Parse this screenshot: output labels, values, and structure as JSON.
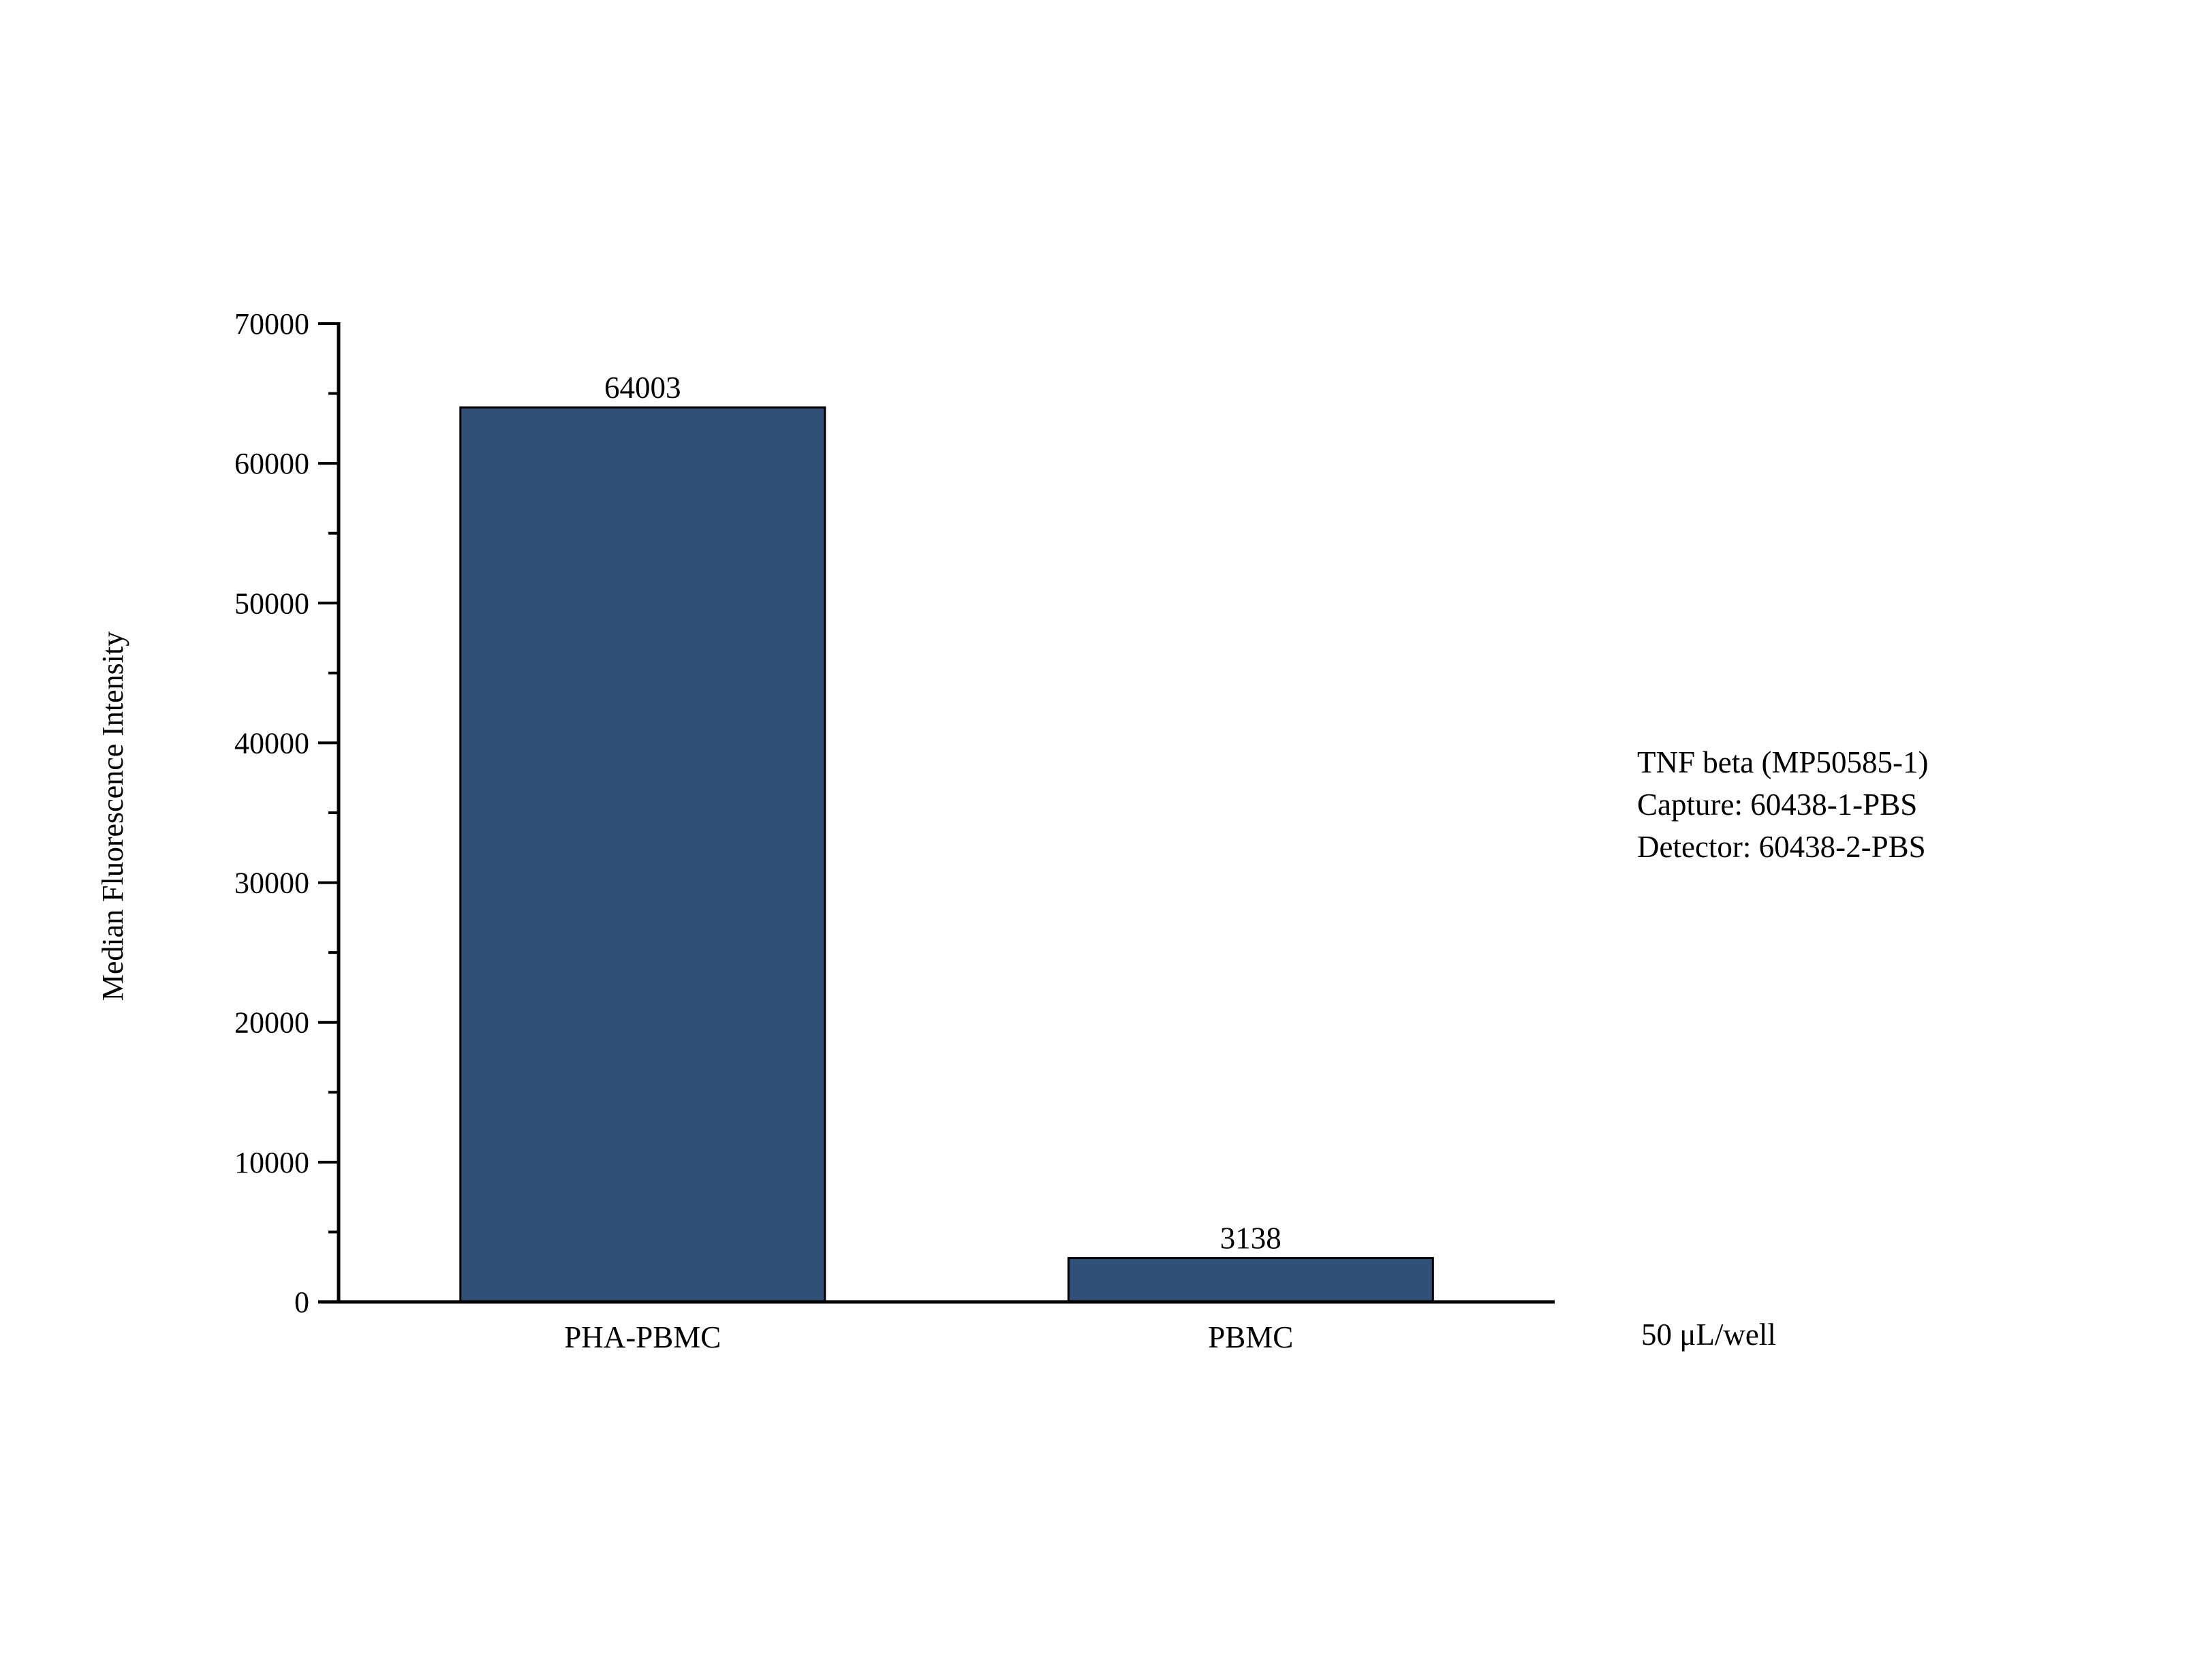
{
  "chart_data": {
    "type": "bar",
    "categories": [
      "PHA-PBMC",
      "PBMC"
    ],
    "values": [
      64003,
      3138
    ],
    "data_labels": [
      "64003",
      "3138"
    ],
    "ylabel": "Median Fluorescence Intensity",
    "ylim": [
      0,
      70000
    ],
    "yticks": [
      0,
      10000,
      20000,
      30000,
      40000,
      50000,
      60000,
      70000
    ],
    "ytick_labels": [
      "0",
      "10000",
      "20000",
      "30000",
      "40000",
      "50000",
      "60000",
      "70000"
    ],
    "bar_color": "#315078",
    "grid": false,
    "annotations": [
      "TNF beta (MP50585-1)",
      "Capture: 60438-1-PBS",
      "Detector: 60438-2-PBS"
    ],
    "footnote": "50 μL/well"
  }
}
